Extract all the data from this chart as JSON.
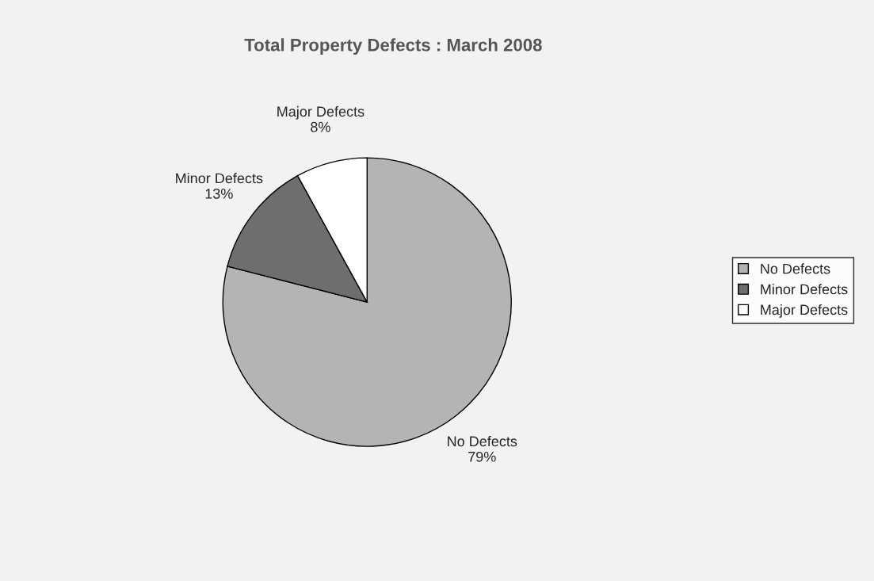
{
  "chart_data": {
    "type": "pie",
    "title": "Total Property Defects : March 2008",
    "categories": [
      "No Defects",
      "Minor Defects",
      "Major Defects"
    ],
    "values": [
      79,
      13,
      8
    ],
    "value_labels": [
      "79%",
      "13%",
      "8%"
    ],
    "colors": [
      "#b4b4b4",
      "#6e6e6e",
      "#ffffff"
    ],
    "legend": "right"
  }
}
